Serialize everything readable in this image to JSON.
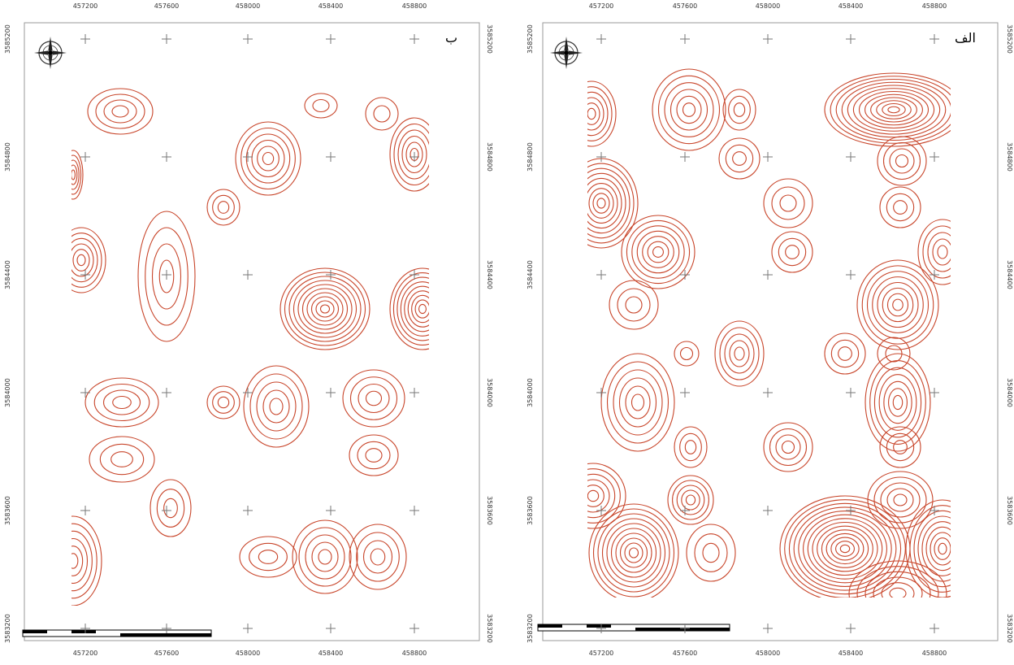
{
  "maps": [
    {
      "label": "ب",
      "x_labels": [
        "457200",
        "457600",
        "458000",
        "458400",
        "458800"
      ],
      "y_labels": [
        "3585200",
        "3584800",
        "3584400",
        "3584000",
        "3583600",
        "3583200"
      ]
    },
    {
      "label": "الف",
      "x_labels": [
        "457200",
        "457600",
        "458000",
        "458400",
        "458800"
      ],
      "y_labels": [
        "3585200",
        "3584800",
        "3584400",
        "3584000",
        "3583600",
        "3583200"
      ]
    }
  ]
}
